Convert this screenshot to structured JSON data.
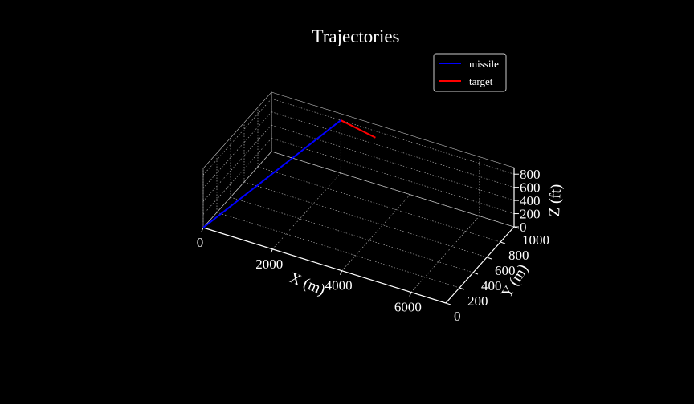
{
  "chart_data": {
    "type": "line",
    "projection": "3d",
    "title": "Trajectories",
    "xlabel": "X (m)",
    "ylabel": "Y (m)",
    "zlabel": "Z (ft)",
    "xlim": [
      0,
      7000
    ],
    "ylim": [
      0,
      1000
    ],
    "zlim": [
      0,
      900
    ],
    "xticks": [
      0,
      2000,
      4000,
      6000
    ],
    "xtick_labels": [
      "0",
      "2000",
      "4000",
      "6000"
    ],
    "yticks": [
      0,
      200,
      400,
      600,
      800,
      1000
    ],
    "ytick_labels": [
      "0",
      "200",
      "400",
      "600",
      "800",
      "1000"
    ],
    "zticks": [
      0,
      200,
      400,
      600,
      800
    ],
    "ztick_labels": [
      "0",
      "200",
      "400",
      "600",
      "800"
    ],
    "grid": true,
    "legend_position": "top-right",
    "background": "#000000",
    "series": [
      {
        "name": "missile",
        "color": "#0000ff",
        "points": [
          [
            0,
            0,
            0
          ],
          [
            2000,
            1000,
            800
          ]
        ]
      },
      {
        "name": "target",
        "color": "#ff0000",
        "points": [
          [
            2000,
            1000,
            800
          ],
          [
            3000,
            1000,
            700
          ]
        ]
      }
    ]
  }
}
